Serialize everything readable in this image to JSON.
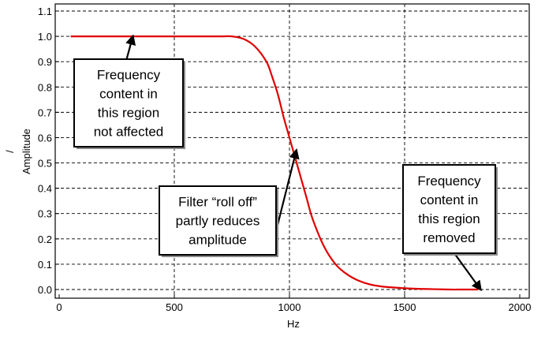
{
  "chart_data": {
    "type": "line",
    "xlabel": "Hz",
    "ylabel": "Amplitude",
    "ylabel_marker": "/",
    "xlim": [
      0,
      2000
    ],
    "ylim": [
      -0.05,
      1.1
    ],
    "x_ticks": [
      "0",
      "500",
      "1000",
      "1500",
      "2000"
    ],
    "x_tick_values": [
      0,
      500,
      1000,
      1500,
      2000
    ],
    "y_ticks": [
      "0.0",
      "0.1",
      "0.2",
      "0.3",
      "0.4",
      "0.5",
      "0.6",
      "0.7",
      "0.8",
      "0.9",
      "1.0",
      "1.1"
    ],
    "y_tick_values": [
      0,
      0.1,
      0.2,
      0.3,
      0.4,
      0.5,
      0.6,
      0.7,
      0.8,
      0.9,
      1.0,
      1.1
    ],
    "grid": true,
    "series": [
      {
        "color": "#e00000",
        "x": [
          50,
          100,
          200,
          300,
          400,
          500,
          600,
          700,
          750,
          800,
          850,
          900,
          925,
          950,
          975,
          1000,
          1025,
          1050,
          1075,
          1100,
          1150,
          1200,
          1250,
          1300,
          1350,
          1400,
          1450,
          1500,
          1550,
          1600,
          1650,
          1700,
          1750,
          1800,
          1820
        ],
        "y": [
          1.0,
          1.0,
          1.0,
          1.0,
          1.0,
          1.0,
          1.0,
          1.0,
          1.0,
          0.99,
          0.96,
          0.9,
          0.84,
          0.77,
          0.68,
          0.6,
          0.52,
          0.44,
          0.36,
          0.28,
          0.17,
          0.1,
          0.06,
          0.035,
          0.02,
          0.012,
          0.008,
          0.005,
          0.003,
          0.002,
          0.001,
          0.0,
          0.0,
          0.0,
          0.0
        ]
      }
    ],
    "annotations": [
      {
        "id": "passband",
        "lines": [
          "Frequency",
          "content in",
          "this region",
          "not affected"
        ],
        "arrow_to": [
          320,
          1.0
        ]
      },
      {
        "id": "rolloff",
        "lines": [
          "Filter “roll off”",
          "partly reduces",
          "amplitude"
        ],
        "arrow_to": [
          1030,
          0.55
        ]
      },
      {
        "id": "stopband",
        "lines": [
          "Frequency",
          "content in",
          "this region",
          "removed"
        ],
        "arrow_to": [
          1830,
          0.0
        ]
      }
    ]
  }
}
